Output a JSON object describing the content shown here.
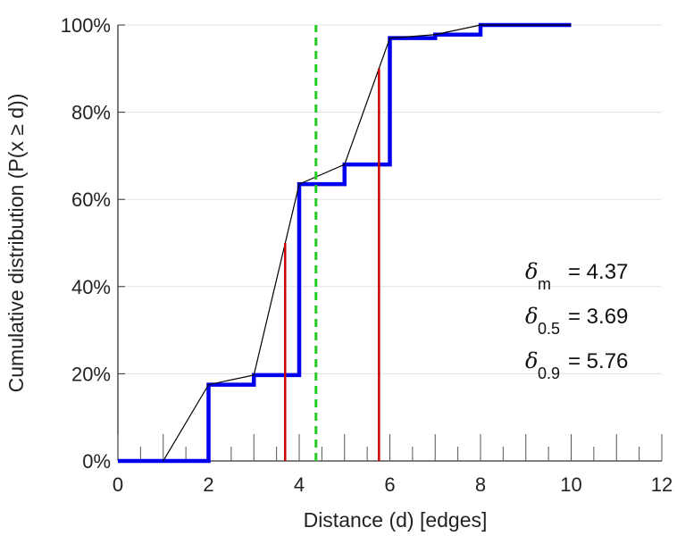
{
  "chart_data": {
    "type": "line",
    "title": "",
    "xlabel": "Distance (d) [edges]",
    "ylabel": "Cumulative distribution (P(x ≥ d))",
    "xlim": [
      0,
      12
    ],
    "ylim": [
      0,
      1
    ],
    "x_ticks": [
      0,
      2,
      4,
      6,
      8,
      10,
      12
    ],
    "x_tick_labels": [
      "0",
      "2",
      "4",
      "6",
      "8",
      "10",
      "12"
    ],
    "y_ticks": [
      0,
      0.2,
      0.4,
      0.6,
      0.8,
      1.0
    ],
    "y_tick_labels": [
      "0%",
      "20%",
      "40%",
      "60%",
      "80%",
      "100%"
    ],
    "grid": "horizontal",
    "series": [
      {
        "kind": "step",
        "color": "#0000ee",
        "x": [
          0,
          1,
          2,
          3,
          4,
          5,
          6,
          7,
          8,
          9,
          10
        ],
        "y": [
          0,
          0,
          0.175,
          0.197,
          0.635,
          0.68,
          0.97,
          0.978,
          1.0,
          1.0,
          1.0
        ]
      },
      {
        "kind": "line",
        "color": "#000000",
        "x": [
          1,
          2,
          3,
          4,
          5,
          6,
          7,
          8,
          9,
          10
        ],
        "y": [
          0,
          0.175,
          0.197,
          0.635,
          0.68,
          0.97,
          0.978,
          1.0,
          1.0,
          1.0
        ]
      }
    ],
    "reference_lines": [
      {
        "kind": "vertical",
        "style": "solid",
        "color": "#cc0000",
        "x": 3.69,
        "y_top": 0.5
      },
      {
        "kind": "vertical",
        "style": "solid",
        "color": "#cc0000",
        "x": 5.76,
        "y_top": 0.9
      },
      {
        "kind": "vertical",
        "style": "dashed",
        "color": "#22cc22",
        "x": 4.37,
        "y_top": 1.0
      }
    ],
    "annotations": [
      {
        "symbol": "δ",
        "sub": "m",
        "text": "= 4.37"
      },
      {
        "symbol": "δ",
        "sub": "0.5",
        "text": "= 3.69"
      },
      {
        "symbol": "δ",
        "sub": "0.9",
        "text": "= 5.76"
      }
    ]
  }
}
